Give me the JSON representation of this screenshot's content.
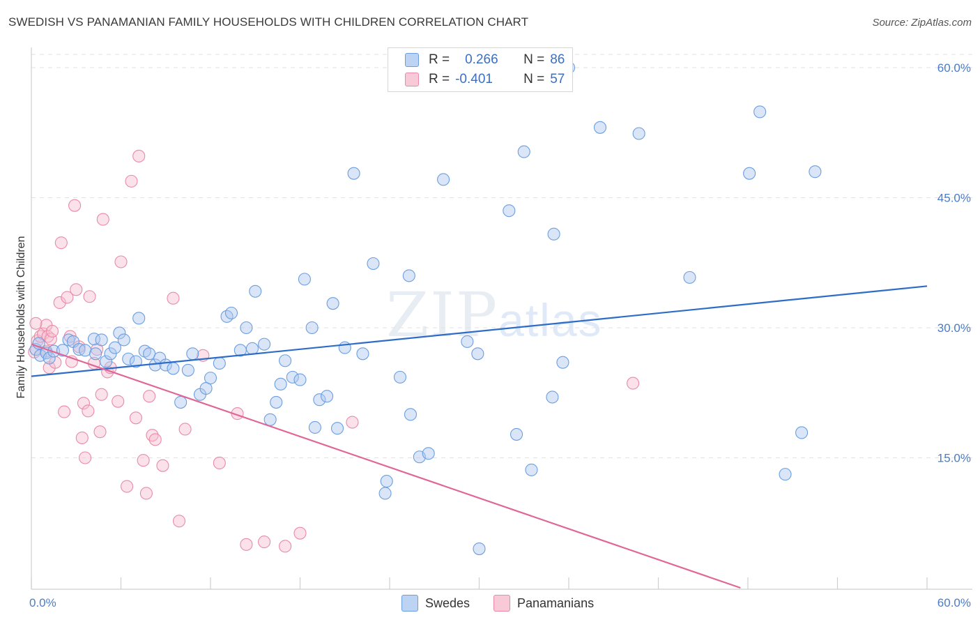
{
  "title": "SWEDISH VS PANAMANIAN FAMILY HOUSEHOLDS WITH CHILDREN CORRELATION CHART",
  "source": "Source: ZipAtlas.com",
  "watermark": {
    "zip": "ZIP",
    "atlas": "atlas"
  },
  "legend": {
    "swedes": {
      "r_label": "R =",
      "r_value": "0.266",
      "n_label": "N =",
      "n_value": "86"
    },
    "panamanians": {
      "r_label": "R =",
      "r_value": "-0.401",
      "n_label": "N =",
      "n_value": "57"
    }
  },
  "bottom_legend": {
    "swedes": "Swedes",
    "panamanians": "Panamanians"
  },
  "chart_data": {
    "type": "scatter",
    "title": "SWEDISH VS PANAMANIAN FAMILY HOUSEHOLDS WITH CHILDREN CORRELATION CHART",
    "xlabel": "",
    "ylabel": "Family Households with Children",
    "xlim": [
      0,
      60
    ],
    "ylim": [
      0,
      62
    ],
    "x_tick_labels": [
      "0.0%",
      "60.0%"
    ],
    "y_ticks": [
      15,
      30,
      45,
      60
    ],
    "y_tick_labels": [
      "15.0%",
      "30.0%",
      "45.0%",
      "60.0%"
    ],
    "grid": "horizontal dashed",
    "colors": {
      "swedes": "#6a9ee0",
      "panamanians": "#e98aa8",
      "swedes_line": "#2d6cc7",
      "panamanians_line": "#e06696"
    },
    "series": [
      {
        "name": "Swedes",
        "color": "#6a9ee0",
        "trend": {
          "x": [
            0,
            60
          ],
          "y": [
            24.4,
            34.8
          ]
        },
        "points": [
          [
            0.3,
            27.5
          ],
          [
            0.5,
            28.2
          ],
          [
            0.6,
            26.8
          ],
          [
            1.0,
            27.1
          ],
          [
            1.2,
            26.5
          ],
          [
            1.5,
            27.3
          ],
          [
            2.1,
            27.4
          ],
          [
            2.5,
            28.6
          ],
          [
            2.8,
            28.4
          ],
          [
            3.2,
            27.5
          ],
          [
            3.6,
            27.4
          ],
          [
            4.2,
            28.7
          ],
          [
            4.3,
            27.0
          ],
          [
            4.7,
            28.6
          ],
          [
            5.0,
            26.1
          ],
          [
            5.3,
            27.0
          ],
          [
            5.6,
            27.7
          ],
          [
            5.9,
            29.4
          ],
          [
            6.2,
            28.6
          ],
          [
            6.5,
            26.4
          ],
          [
            7.0,
            26.1
          ],
          [
            7.2,
            31.1
          ],
          [
            7.6,
            27.3
          ],
          [
            7.9,
            27.0
          ],
          [
            8.3,
            25.7
          ],
          [
            8.6,
            26.5
          ],
          [
            9.0,
            25.7
          ],
          [
            9.5,
            25.3
          ],
          [
            10.0,
            21.4
          ],
          [
            10.5,
            25.1
          ],
          [
            10.8,
            27.0
          ],
          [
            11.3,
            22.3
          ],
          [
            11.7,
            23.0
          ],
          [
            12.0,
            24.2
          ],
          [
            12.6,
            25.9
          ],
          [
            13.1,
            31.3
          ],
          [
            13.4,
            31.7
          ],
          [
            14.0,
            27.4
          ],
          [
            14.4,
            30.0
          ],
          [
            14.8,
            27.6
          ],
          [
            15.0,
            34.2
          ],
          [
            15.6,
            28.1
          ],
          [
            16.0,
            19.4
          ],
          [
            16.4,
            21.4
          ],
          [
            16.7,
            23.5
          ],
          [
            17.0,
            26.2
          ],
          [
            17.5,
            24.3
          ],
          [
            18.0,
            24.0
          ],
          [
            18.3,
            35.6
          ],
          [
            18.8,
            30.0
          ],
          [
            19.0,
            18.5
          ],
          [
            19.3,
            21.7
          ],
          [
            19.8,
            22.1
          ],
          [
            20.2,
            32.8
          ],
          [
            20.5,
            18.4
          ],
          [
            21.0,
            27.7
          ],
          [
            21.6,
            47.8
          ],
          [
            22.2,
            27.0
          ],
          [
            22.9,
            37.4
          ],
          [
            23.8,
            12.3
          ],
          [
            23.7,
            10.9
          ],
          [
            24.7,
            24.3
          ],
          [
            25.3,
            36.0
          ],
          [
            25.4,
            20.0
          ],
          [
            26.0,
            15.1
          ],
          [
            26.6,
            15.5
          ],
          [
            27.6,
            47.1
          ],
          [
            29.2,
            28.4
          ],
          [
            29.9,
            27.0
          ],
          [
            30.0,
            4.5
          ],
          [
            32.0,
            43.5
          ],
          [
            32.5,
            17.7
          ],
          [
            33.0,
            50.3
          ],
          [
            33.5,
            13.6
          ],
          [
            34.9,
            22.0
          ],
          [
            35.0,
            40.8
          ],
          [
            35.6,
            26.0
          ],
          [
            38.1,
            53.1
          ],
          [
            40.7,
            52.4
          ],
          [
            44.1,
            35.8
          ],
          [
            48.1,
            47.8
          ],
          [
            48.8,
            54.9
          ],
          [
            50.5,
            13.1
          ],
          [
            51.6,
            17.9
          ],
          [
            52.5,
            48.0
          ],
          [
            36.0,
            60.0
          ]
        ]
      },
      {
        "name": "Panamanians",
        "color": "#e98aa8",
        "trend": {
          "x": [
            0,
            47.5
          ],
          "y": [
            28.1,
            0
          ]
        },
        "points": [
          [
            0.2,
            27.2
          ],
          [
            0.4,
            28.5
          ],
          [
            0.6,
            29.0
          ],
          [
            0.8,
            29.3
          ],
          [
            1.0,
            30.3
          ],
          [
            1.1,
            29.0
          ],
          [
            1.2,
            25.4
          ],
          [
            1.3,
            28.7
          ],
          [
            1.4,
            29.6
          ],
          [
            1.6,
            26.0
          ],
          [
            1.9,
            32.9
          ],
          [
            2.0,
            39.8
          ],
          [
            2.2,
            20.3
          ],
          [
            2.4,
            33.5
          ],
          [
            2.6,
            29.0
          ],
          [
            2.7,
            26.1
          ],
          [
            2.9,
            44.1
          ],
          [
            3.0,
            34.4
          ],
          [
            3.2,
            27.8
          ],
          [
            3.4,
            17.3
          ],
          [
            3.5,
            21.3
          ],
          [
            3.6,
            15.0
          ],
          [
            3.8,
            20.4
          ],
          [
            3.9,
            33.6
          ],
          [
            4.2,
            25.9
          ],
          [
            4.4,
            27.5
          ],
          [
            4.6,
            18.0
          ],
          [
            4.7,
            22.3
          ],
          [
            4.8,
            42.5
          ],
          [
            5.1,
            24.9
          ],
          [
            5.3,
            25.4
          ],
          [
            5.8,
            21.5
          ],
          [
            6.0,
            37.6
          ],
          [
            6.4,
            11.7
          ],
          [
            6.7,
            46.9
          ],
          [
            7.0,
            19.6
          ],
          [
            7.2,
            49.8
          ],
          [
            7.5,
            14.7
          ],
          [
            7.7,
            10.9
          ],
          [
            7.9,
            22.1
          ],
          [
            8.1,
            17.6
          ],
          [
            8.3,
            17.1
          ],
          [
            8.8,
            14.1
          ],
          [
            9.5,
            33.4
          ],
          [
            9.9,
            7.7
          ],
          [
            10.3,
            18.3
          ],
          [
            11.5,
            26.8
          ],
          [
            12.6,
            14.4
          ],
          [
            13.8,
            20.1
          ],
          [
            14.4,
            5.0
          ],
          [
            15.6,
            5.3
          ],
          [
            17.0,
            4.8
          ],
          [
            18.0,
            6.3
          ],
          [
            21.5,
            19.1
          ],
          [
            40.3,
            23.6
          ],
          [
            0.3,
            30.5
          ],
          [
            1.0,
            27.3
          ]
        ]
      }
    ]
  }
}
